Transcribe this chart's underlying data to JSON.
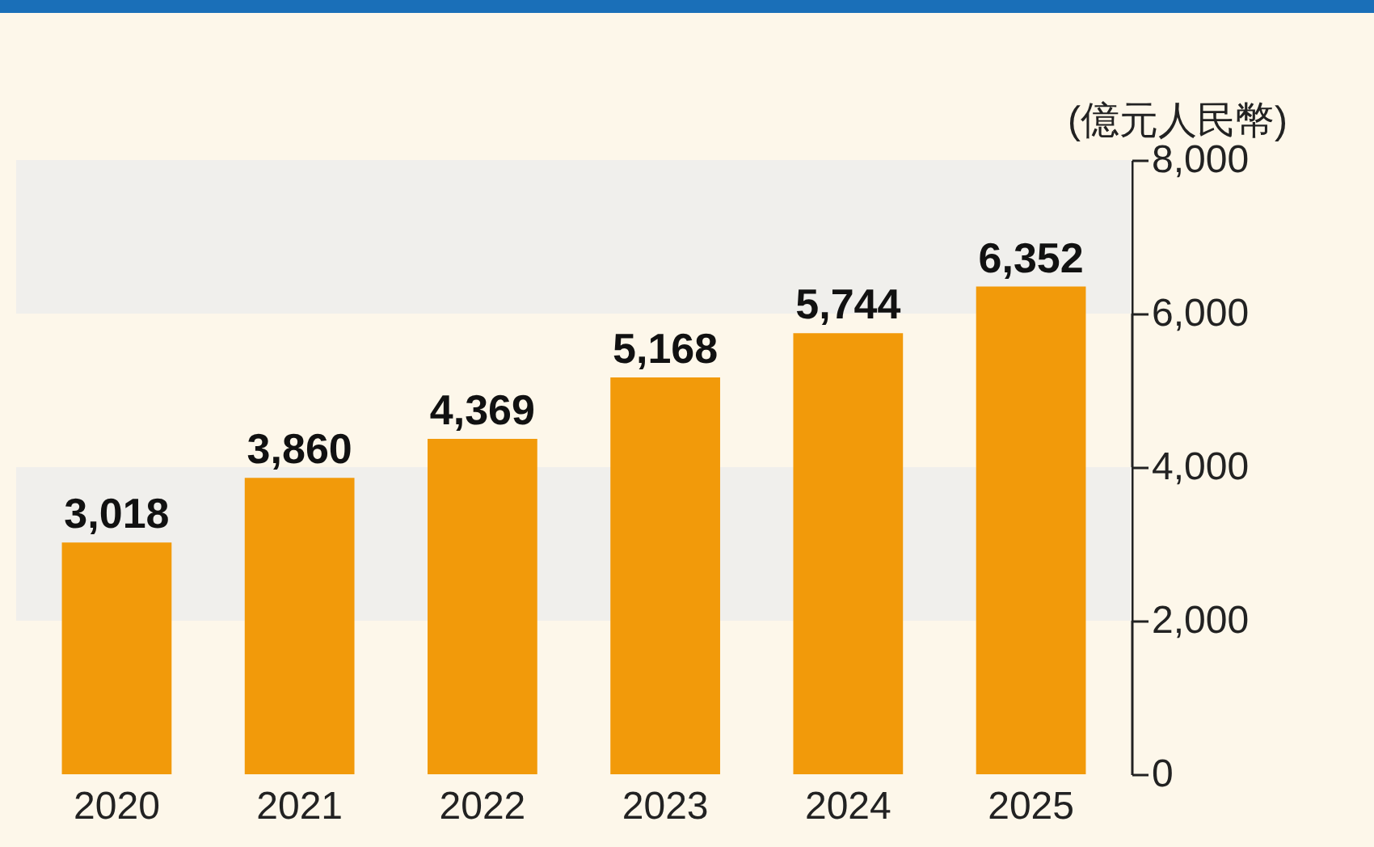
{
  "chart_data": {
    "type": "bar",
    "ylabel": "(億元人民幣)",
    "categories": [
      "2020",
      "2021",
      "2022",
      "2023",
      "2024",
      "2025"
    ],
    "values": [
      3018,
      3860,
      4369,
      5168,
      5744,
      6352
    ],
    "color": "#f29a0a",
    "value_labels": [
      "3,018",
      "3,860",
      "4,369",
      "5,168",
      "5,744",
      "6,352"
    ],
    "ylim": [
      0,
      8000
    ],
    "yticks": [
      {
        "value": 0,
        "label": "0"
      },
      {
        "value": 2000,
        "label": "2,000"
      },
      {
        "value": 4000,
        "label": "4,000"
      },
      {
        "value": 6000,
        "label": "6,000"
      },
      {
        "value": 8000,
        "label": "8,000"
      }
    ],
    "bands": [
      {
        "axis": "y",
        "from": 2000,
        "to": 4000,
        "color": "#f0efec"
      },
      {
        "axis": "y",
        "from": 6000,
        "to": 8000,
        "color": "#f0efec"
      }
    ],
    "grid": false
  }
}
